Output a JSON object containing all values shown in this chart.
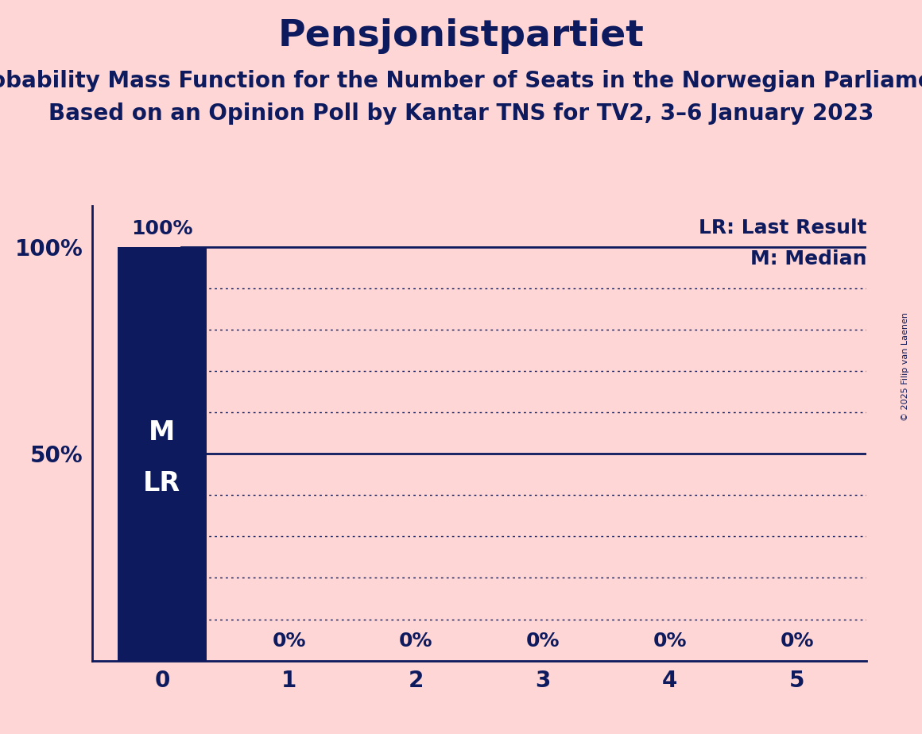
{
  "title": "Pensjonistpartiet",
  "subtitle1": "Probability Mass Function for the Number of Seats in the Norwegian Parliament",
  "subtitle2": "Based on an Opinion Poll by Kantar TNS for TV2, 3–6 January 2023",
  "copyright": "© 2025 Filip van Laenen",
  "bar_values": [
    100,
    0,
    0,
    0,
    0,
    0
  ],
  "bar_labels": [
    "100%",
    "0%",
    "0%",
    "0%",
    "0%",
    "0%"
  ],
  "x_ticks": [
    0,
    1,
    2,
    3,
    4,
    5
  ],
  "ylim": [
    0,
    110
  ],
  "bar_color": "#0d1b5e",
  "background_color": "#ffd6d6",
  "text_color": "#0d1b5e",
  "lr_label": "LR: Last Result",
  "m_label": "M: Median",
  "median_line_y": 50,
  "lr_line_y": 100,
  "bar_label_fontsize": 18,
  "title_fontsize": 34,
  "subtitle_fontsize": 20,
  "tick_fontsize": 20,
  "legend_fontsize": 18,
  "in_bar_fontsize": 24
}
